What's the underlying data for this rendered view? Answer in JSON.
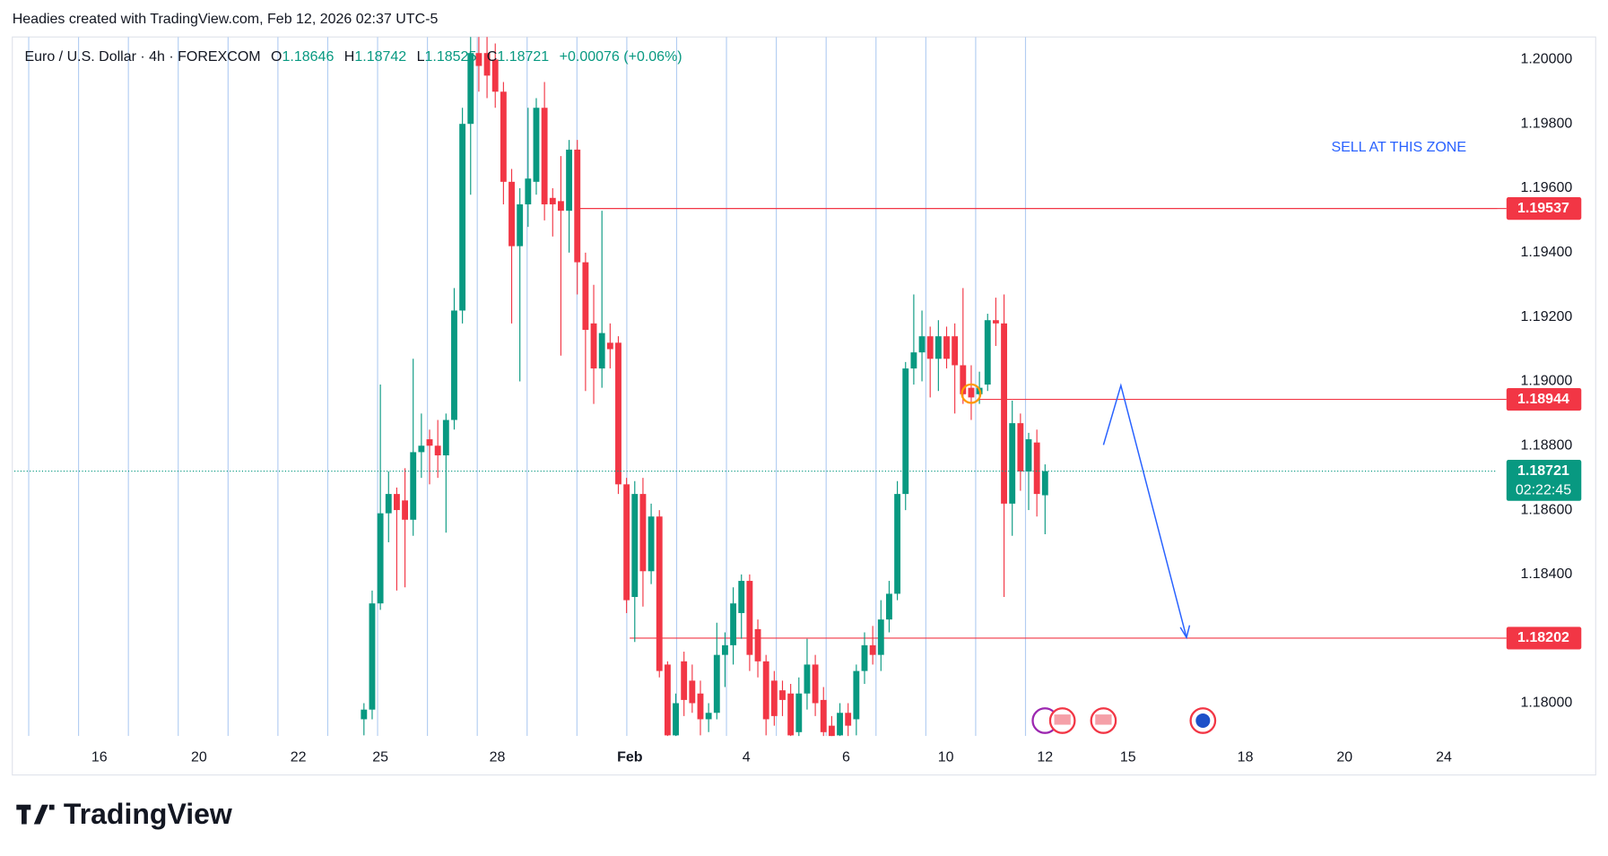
{
  "chart_data": {
    "type": "candlestick",
    "header_text": "Headies created with TradingView.com, Feb 12, 2026 02:37 UTC-5",
    "legend": {
      "symbol": "Euro / U.S. Dollar · 4h · FOREXCOM",
      "o": "O",
      "h": "H",
      "l": "L",
      "c": "C",
      "change": "+0.00076 (+0.06%)"
    },
    "annotation": "SELL AT THIS ZONE",
    "countdown": "02:22:45",
    "logo": "TradingView",
    "up_color": "#089981",
    "down_color": "#f23645",
    "x": [
      0,
      1,
      2,
      3,
      4,
      5,
      6,
      7,
      8,
      9,
      10,
      11,
      12,
      13,
      14,
      15,
      16,
      17,
      18,
      19,
      20,
      21,
      22,
      23,
      24,
      25,
      26,
      27,
      28,
      29,
      30,
      31,
      32,
      33,
      34,
      35,
      36,
      37,
      38,
      39,
      40,
      41,
      42,
      43,
      44,
      45,
      46,
      47,
      48,
      49,
      50,
      51,
      52,
      53,
      54,
      55,
      56,
      57,
      58,
      59,
      60,
      61,
      62,
      63,
      64,
      65,
      66,
      67,
      68,
      69,
      70,
      71,
      72,
      73,
      74,
      75,
      76,
      77,
      78,
      79,
      80,
      81,
      82,
      83
    ],
    "open": [
      1.1795,
      1.1798,
      1.1831,
      1.1859,
      1.1865,
      1.1863,
      1.1857,
      1.1878,
      1.1882,
      1.188,
      1.1877,
      1.1888,
      1.1922,
      1.198,
      1.2002,
      1.2002,
      1.2,
      1.199,
      1.1962,
      1.1942,
      1.1955,
      1.1962,
      1.1985,
      1.1957,
      1.1956,
      1.1953,
      1.1972,
      1.1937,
      1.1918,
      1.1904,
      1.1912,
      1.1912,
      1.1868,
      1.1833,
      1.1865,
      1.1841,
      1.1858,
      1.1812,
      1.179,
      1.1813,
      1.1807,
      1.1803,
      1.1795,
      1.1797,
      1.1815,
      1.1818,
      1.1828,
      1.1838,
      1.1823,
      1.1813,
      1.1807,
      1.1804,
      1.1803,
      1.1791,
      1.1803,
      1.1812,
      1.1801,
      1.1793,
      1.179,
      1.1797,
      1.1795,
      1.181,
      1.1818,
      1.1815,
      1.1826,
      1.1834,
      1.1865,
      1.1904,
      1.1909,
      1.1914,
      1.1907,
      1.1914,
      1.1914,
      1.1905,
      1.1898,
      1.1896,
      1.1899,
      1.1919,
      1.1918,
      1.1862,
      1.1887,
      1.1872,
      1.1881,
      1.18646
    ],
    "high": [
      1.18,
      1.1835,
      1.1899,
      1.1872,
      1.1867,
      1.1873,
      1.1907,
      1.189,
      1.1885,
      1.1888,
      1.189,
      1.1929,
      1.1985,
      1.2008,
      1.201,
      1.2008,
      1.2005,
      1.1993,
      1.1966,
      1.196,
      1.1985,
      1.1988,
      1.1993,
      1.196,
      1.197,
      1.1975,
      1.1975,
      1.194,
      1.193,
      1.1953,
      1.1918,
      1.1914,
      1.187,
      1.1869,
      1.187,
      1.1862,
      1.186,
      1.1813,
      1.1803,
      1.1816,
      1.1812,
      1.1807,
      1.18,
      1.1825,
      1.1822,
      1.1836,
      1.184,
      1.184,
      1.1826,
      1.1815,
      1.181,
      1.1807,
      1.1806,
      1.1808,
      1.182,
      1.1815,
      1.1805,
      1.1796,
      1.18,
      1.18,
      1.1812,
      1.1822,
      1.1824,
      1.1832,
      1.1838,
      1.1869,
      1.1906,
      1.1927,
      1.1922,
      1.1917,
      1.1919,
      1.1917,
      1.1918,
      1.1929,
      1.1905,
      1.1903,
      1.1921,
      1.1926,
      1.1927,
      1.1894,
      1.189,
      1.1884,
      1.1885,
      1.18742
    ],
    "low": [
      1.179,
      1.1795,
      1.1829,
      1.185,
      1.1835,
      1.1836,
      1.1852,
      1.187,
      1.1868,
      1.187,
      1.1853,
      1.1885,
      1.1918,
      1.1958,
      1.199,
      1.1988,
      1.1985,
      1.1955,
      1.1918,
      1.19,
      1.1948,
      1.1958,
      1.195,
      1.1945,
      1.1908,
      1.194,
      1.1927,
      1.1897,
      1.1893,
      1.1898,
      1.1904,
      1.1865,
      1.1828,
      1.1819,
      1.183,
      1.1837,
      1.1808,
      1.1785,
      1.1787,
      1.1796,
      1.1797,
      1.179,
      1.1791,
      1.1795,
      1.1805,
      1.1812,
      1.182,
      1.181,
      1.1808,
      1.179,
      1.1793,
      1.1796,
      1.1786,
      1.1788,
      1.1798,
      1.1796,
      1.1787,
      1.1785,
      1.1786,
      1.1789,
      1.179,
      1.1806,
      1.1812,
      1.181,
      1.1822,
      1.1832,
      1.186,
      1.1899,
      1.19,
      1.1895,
      1.1897,
      1.1904,
      1.189,
      1.1893,
      1.1888,
      1.1893,
      1.1897,
      1.1911,
      1.1833,
      1.1852,
      1.1866,
      1.186,
      1.1858,
      1.18525
    ],
    "close": [
      1.1798,
      1.1831,
      1.1859,
      1.1865,
      1.186,
      1.1857,
      1.1878,
      1.188,
      1.188,
      1.1877,
      1.1888,
      1.1922,
      1.198,
      1.2002,
      1.1998,
      1.1995,
      1.199,
      1.1962,
      1.1942,
      1.1955,
      1.1963,
      1.1985,
      1.1955,
      1.1955,
      1.1953,
      1.1972,
      1.1937,
      1.1916,
      1.1904,
      1.1915,
      1.191,
      1.1868,
      1.1832,
      1.1865,
      1.1841,
      1.1858,
      1.181,
      1.179,
      1.18,
      1.1801,
      1.18,
      1.1795,
      1.1797,
      1.1815,
      1.1818,
      1.1831,
      1.1838,
      1.1815,
      1.1813,
      1.1795,
      1.1796,
      1.1801,
      1.179,
      1.1803,
      1.1812,
      1.18,
      1.1791,
      1.1789,
      1.1797,
      1.1793,
      1.181,
      1.1818,
      1.1815,
      1.1826,
      1.1834,
      1.1865,
      1.1904,
      1.1909,
      1.1914,
      1.1907,
      1.1914,
      1.1907,
      1.1905,
      1.1896,
      1.1895,
      1.1898,
      1.1919,
      1.1918,
      1.1862,
      1.1887,
      1.1872,
      1.1882,
      1.1865,
      1.18721
    ],
    "price_lines": [
      {
        "value": 1.19537,
        "color": "#f23645"
      },
      {
        "value": 1.18944,
        "color": "#f23645"
      },
      {
        "value": 1.18202,
        "color": "#f23645"
      }
    ],
    "xlim": [
      -42.6,
      138.1
    ],
    "ylim": [
      1.17898,
      1.2007
    ],
    "xticks": [
      {
        "value": -32.25,
        "label": "16"
      },
      {
        "value": -20.1,
        "label": "20"
      },
      {
        "value": -8,
        "label": "22"
      },
      {
        "value": 2,
        "label": "25"
      },
      {
        "value": 16.25,
        "label": "28"
      },
      {
        "value": 32.4,
        "label": "Feb"
      },
      {
        "value": 46.6,
        "label": "4"
      },
      {
        "value": 58.75,
        "label": "6"
      },
      {
        "value": 70.9,
        "label": "10"
      },
      {
        "value": 83,
        "label": "12"
      },
      {
        "value": 93.1,
        "label": "15"
      },
      {
        "value": 107.4,
        "label": "18"
      },
      {
        "value": 119.5,
        "label": "20"
      },
      {
        "value": 131.6,
        "label": "24"
      }
    ],
    "yticks": [
      {
        "value": 1.18,
        "label": "1.18000"
      },
      {
        "value": 1.182,
        "label": "1.18200"
      },
      {
        "value": 1.184,
        "label": "1.18400"
      },
      {
        "value": 1.186,
        "label": "1.18600"
      },
      {
        "value": 1.188,
        "label": "1.18800"
      },
      {
        "value": 1.19,
        "label": "1.19000"
      },
      {
        "value": 1.192,
        "label": "1.19200"
      },
      {
        "value": 1.194,
        "label": "1.19400"
      },
      {
        "value": 1.196,
        "label": "1.19600"
      },
      {
        "value": 1.198,
        "label": "1.19800"
      },
      {
        "value": 1.2,
        "label": "1.20000"
      }
    ]
  }
}
